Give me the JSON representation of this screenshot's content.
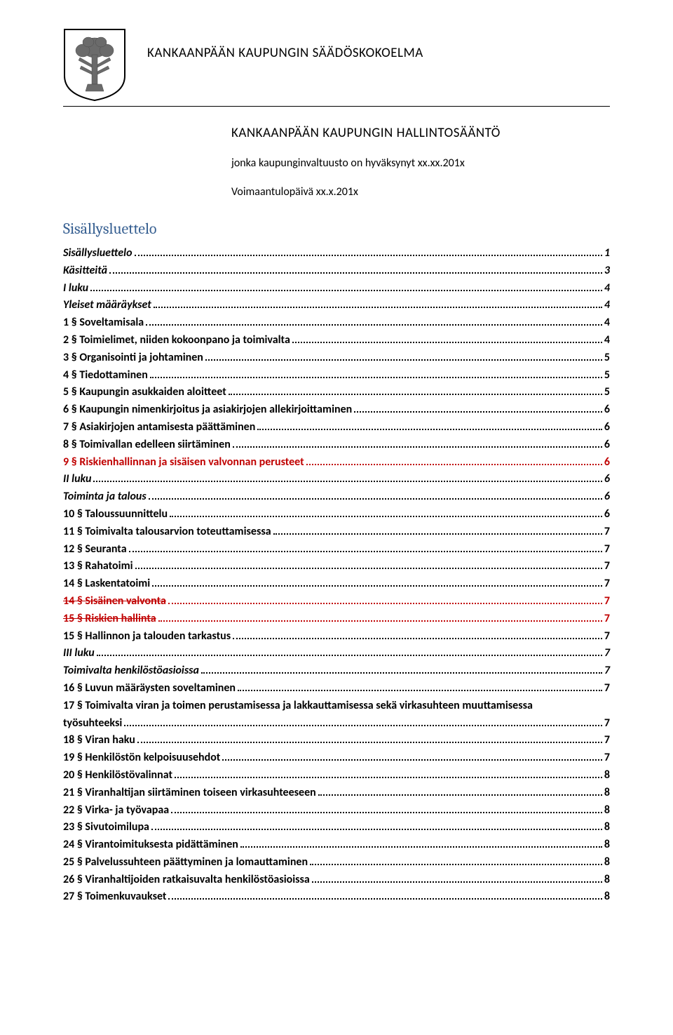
{
  "header": {
    "org_title": "KANKAANPÄÄN KAUPUNGIN SÄÄDÖSKOKOELMA",
    "main_title": "KANKAANPÄÄN KAUPUNGIN HALLINTOSÄÄNTÖ",
    "subtitle": "jonka kaupunginvaltuusto on hyväksynyt xx.xx.201x",
    "effective": "Voimaantulopäivä xx.x.201x"
  },
  "logo": {
    "shield_fill": "#ffffff",
    "shield_stroke": "#000000",
    "tree_fill": "#7a7a7a"
  },
  "toc_title": "Sisällysluettelo",
  "toc_colors": {
    "struck_color": "#c00000",
    "link_color": "#000000"
  },
  "toc": [
    {
      "label": "Sisällysluettelo",
      "page": "1",
      "level": 0,
      "style": "bold-italic"
    },
    {
      "label": "Käsitteitä",
      "page": "3",
      "level": 0,
      "style": "bold-italic"
    },
    {
      "label": "I luku",
      "page": "4",
      "level": 0,
      "style": "bold-italic"
    },
    {
      "label": "Yleiset määräykset",
      "page": "4",
      "level": 0,
      "style": "bold-italic"
    },
    {
      "label": "1 § Soveltamisala",
      "page": "4",
      "level": 1,
      "style": "bold"
    },
    {
      "label": "2 § Toimielimet, niiden kokoonpano ja toimivalta",
      "page": "4",
      "level": 1,
      "style": "bold"
    },
    {
      "label": "3 § Organisointi ja johtaminen",
      "page": "5",
      "level": 1,
      "style": "bold"
    },
    {
      "label": "4 § Tiedottaminen",
      "page": "5",
      "level": 1,
      "style": "bold"
    },
    {
      "label": "5 § Kaupungin asukkaiden aloitteet",
      "page": "5",
      "level": 1,
      "style": "bold"
    },
    {
      "label": "6 § Kaupungin nimenkirjoitus ja asiakirjojen allekirjoittaminen",
      "page": "6",
      "level": 1,
      "style": "bold"
    },
    {
      "label": "7 § Asiakirjojen antamisesta päättäminen",
      "page": "6",
      "level": 1,
      "style": "bold"
    },
    {
      "label": "8 § Toimivallan edelleen siirtäminen",
      "page": "6",
      "level": 1,
      "style": "bold"
    },
    {
      "label": "9 § Riskienhallinnan ja sisäisen valvonnan perusteet",
      "page": "6",
      "level": 1,
      "style": "bold red"
    },
    {
      "label": "II luku",
      "page": "6",
      "level": 0,
      "style": "bold-italic"
    },
    {
      "label": "Toiminta ja talous",
      "page": "6",
      "level": 0,
      "style": "bold-italic"
    },
    {
      "label": "10 § Taloussuunnittelu",
      "page": "6",
      "level": 1,
      "style": "bold"
    },
    {
      "label": "11 § Toimivalta talousarvion toteuttamisessa",
      "page": "7",
      "level": 1,
      "style": "bold"
    },
    {
      "label": "12 § Seuranta",
      "page": "7",
      "level": 1,
      "style": "bold"
    },
    {
      "label": "13 § Rahatoimi",
      "page": "7",
      "level": 1,
      "style": "bold"
    },
    {
      "label": "14 § Laskentatoimi",
      "page": "7",
      "level": 1,
      "style": "bold"
    },
    {
      "label": "14 § Sisäinen valvonta",
      "page": "7",
      "level": 1,
      "style": "bold struck red"
    },
    {
      "label": "15 § Riskien hallinta",
      "page": "7",
      "level": 1,
      "style": "bold struck red"
    },
    {
      "label": "15 § Hallinnon ja talouden tarkastus",
      "page": "7",
      "level": 1,
      "style": "bold"
    },
    {
      "label": "III luku",
      "page": "7",
      "level": 0,
      "style": "bold-italic"
    },
    {
      "label": "Toimivalta henkilöstöasioissa",
      "page": "7",
      "level": 0,
      "style": "bold-italic"
    },
    {
      "label": "16 § Luvun määräysten soveltaminen",
      "page": "7",
      "level": 1,
      "style": "bold"
    },
    {
      "label": "17 § Toimivalta viran ja toimen perustamisessa ja lakkauttamisessa sekä virkasuhteen muuttamisessa työsuhteeksi",
      "page": "7",
      "level": 1,
      "style": "bold",
      "wrap": true
    },
    {
      "label": "18 § Viran haku",
      "page": "7",
      "level": 1,
      "style": "bold"
    },
    {
      "label": "19 § Henkilöstön kelpoisuusehdot",
      "page": "7",
      "level": 1,
      "style": "bold"
    },
    {
      "label": "20 § Henkilöstövalinnat",
      "page": "8",
      "level": 1,
      "style": "bold"
    },
    {
      "label": "21 § Viranhaltijan siirtäminen toiseen virkasuhteeseen",
      "page": "8",
      "level": 1,
      "style": "bold"
    },
    {
      "label": "22 § Virka- ja työvapaa",
      "page": "8",
      "level": 1,
      "style": "bold"
    },
    {
      "label": "23 § Sivutoimilupa",
      "page": "8",
      "level": 1,
      "style": "bold"
    },
    {
      "label": "24 § Virantoimituksesta pidättäminen",
      "page": "8",
      "level": 1,
      "style": "bold"
    },
    {
      "label": "25 § Palvelussuhteen päättyminen ja lomauttaminen",
      "page": "8",
      "level": 1,
      "style": "bold"
    },
    {
      "label": "26 § Viranhaltijoiden ratkaisuvalta henkilöstöasioissa",
      "page": "8",
      "level": 1,
      "style": "bold"
    },
    {
      "label": "27 § Toimenkuvaukset",
      "page": "8",
      "level": 1,
      "style": "bold"
    }
  ]
}
